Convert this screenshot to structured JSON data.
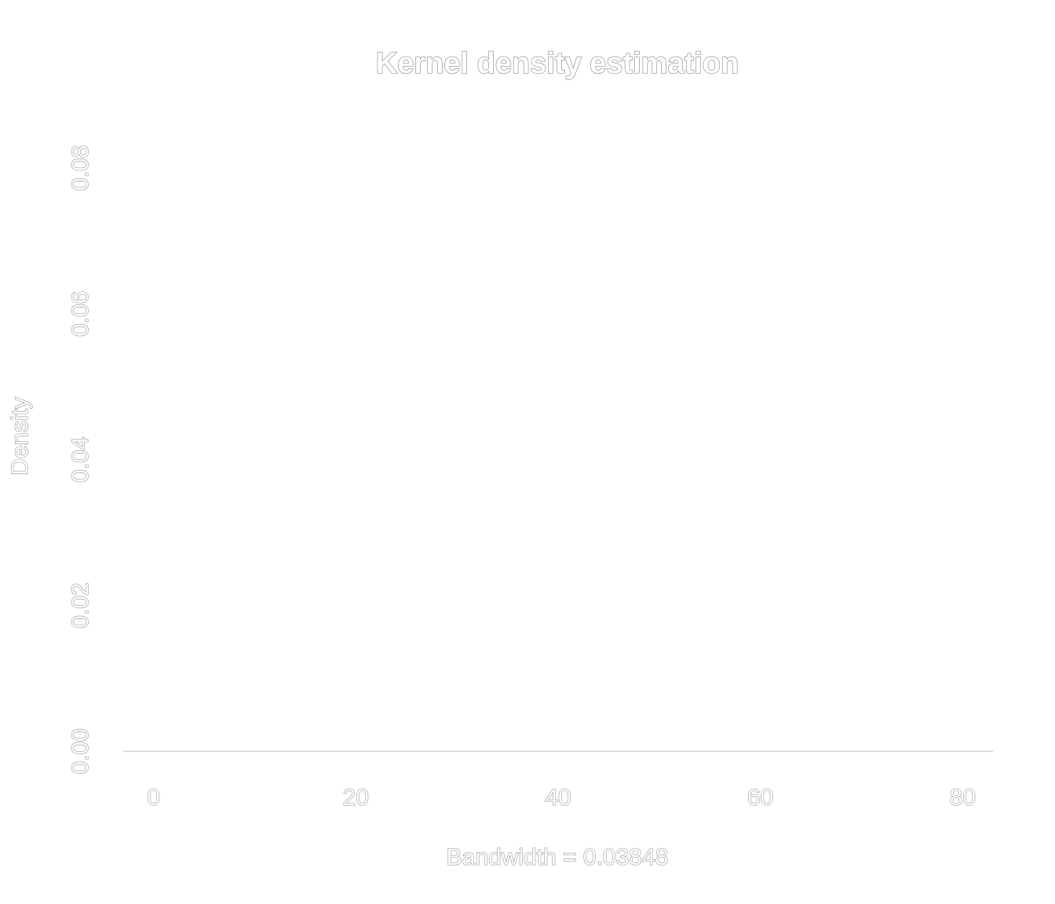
{
  "chart_data": {
    "type": "line",
    "title": "Kernel density estimation",
    "xlabel": "Bandwidth = 0.03848",
    "ylabel": "Density",
    "xlim": [
      -3,
      83
    ],
    "ylim": [
      -0.0035,
      0.0885
    ],
    "x_ticks": [
      0,
      20,
      40,
      60,
      80
    ],
    "y_ticks": [
      0.0,
      0.02,
      0.04,
      0.06,
      0.08
    ],
    "x_tick_labels": [
      "0",
      "20",
      "40",
      "60",
      "80"
    ],
    "y_tick_labels": [
      "0.00",
      "0.02",
      "0.04",
      "0.06",
      "0.08"
    ],
    "grid": false,
    "series": [
      {
        "x": [
          0,
          80
        ],
        "y": [
          0,
          0
        ]
      }
    ],
    "colors": {
      "line": "#cfcfcf",
      "text_stroke": "#8c8c8c",
      "text_fill": "#ffffff"
    }
  }
}
